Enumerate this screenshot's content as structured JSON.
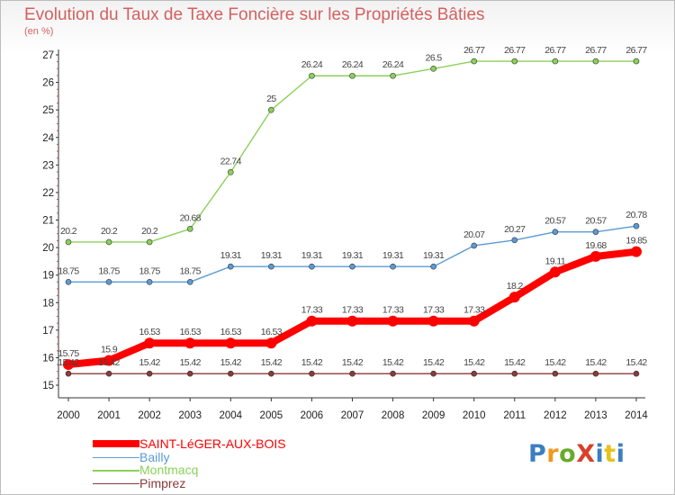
{
  "title": "Evolution du Taux de Taxe Foncière sur les Propriétés Bâties",
  "subtitle": "(en %)",
  "logo": {
    "text": "ProXiti",
    "colors": [
      "#3a7fc1",
      "#f09a1c",
      "#6aaa2a",
      "#d9402b",
      "#3a7fc1",
      "#e7c21c",
      "#3a7fc1"
    ]
  },
  "chart_data": {
    "type": "line",
    "title": "Evolution du Taux de Taxe Foncière sur les Propriétés Bâties",
    "ylabel": "(en %)",
    "xlabel": "",
    "x": [
      "2000",
      "2001",
      "2002",
      "2003",
      "2004",
      "2005",
      "2006",
      "2007",
      "2008",
      "2009",
      "2010",
      "2011",
      "2012",
      "2013",
      "2014"
    ],
    "ylim": [
      15,
      27
    ],
    "yticks": [
      "15",
      "16",
      "17",
      "18",
      "19",
      "20",
      "21",
      "22",
      "23",
      "24",
      "25",
      "26",
      "27"
    ],
    "grid": false,
    "legend_position": "bottom-left",
    "series": [
      {
        "name": "SAINT-LéGER-AUX-BOIS",
        "color": "#ff0000",
        "thick": true,
        "values": [
          15.75,
          15.9,
          16.53,
          16.53,
          16.53,
          16.53,
          17.33,
          17.33,
          17.33,
          17.33,
          17.33,
          18.2,
          19.11,
          19.68,
          19.85
        ],
        "labels": [
          "15.75",
          "15.9",
          "16.53",
          "16.53",
          "16.53",
          "16.53",
          "17.33",
          "17.33",
          "17.33",
          "17.33",
          "17.33",
          "18.2",
          "19.11",
          "19.68",
          "19.85"
        ]
      },
      {
        "name": "Bailly",
        "color": "#5b9bd5",
        "thick": false,
        "values": [
          18.75,
          18.75,
          18.75,
          18.75,
          19.31,
          19.31,
          19.31,
          19.31,
          19.31,
          19.31,
          20.07,
          20.27,
          20.57,
          20.57,
          20.78
        ],
        "labels": [
          "18.75",
          "18.75",
          "18.75",
          "18.75",
          "19.31",
          "19.31",
          "19.31",
          "19.31",
          "19.31",
          "19.31",
          "20.07",
          "20.27",
          "20.57",
          "20.57",
          "20.78"
        ]
      },
      {
        "name": "Montmacq",
        "color": "#8bd05a",
        "thick": false,
        "values": [
          20.2,
          20.2,
          20.2,
          20.68,
          22.74,
          25,
          26.24,
          26.24,
          26.24,
          26.5,
          26.77,
          26.77,
          26.77,
          26.77,
          26.77
        ],
        "labels": [
          "20.2",
          "20.2",
          "20.2",
          "20.68",
          "22.74",
          "25",
          "26.24",
          "26.24",
          "26.24",
          "26.5",
          "26.77",
          "26.77",
          "26.77",
          "26.77",
          "26.77"
        ]
      },
      {
        "name": "Pimprez",
        "color": "#8b3a3a",
        "thick": false,
        "values": [
          15.42,
          15.42,
          15.42,
          15.42,
          15.42,
          15.42,
          15.42,
          15.42,
          15.42,
          15.42,
          15.42,
          15.42,
          15.42,
          15.42,
          15.42
        ],
        "labels": [
          "15.42",
          "15.42",
          "15.42",
          "15.42",
          "15.42",
          "15.42",
          "15.42",
          "15.42",
          "15.42",
          "15.42",
          "15.42",
          "15.42",
          "15.42",
          "15.42",
          "15.42"
        ]
      }
    ]
  }
}
